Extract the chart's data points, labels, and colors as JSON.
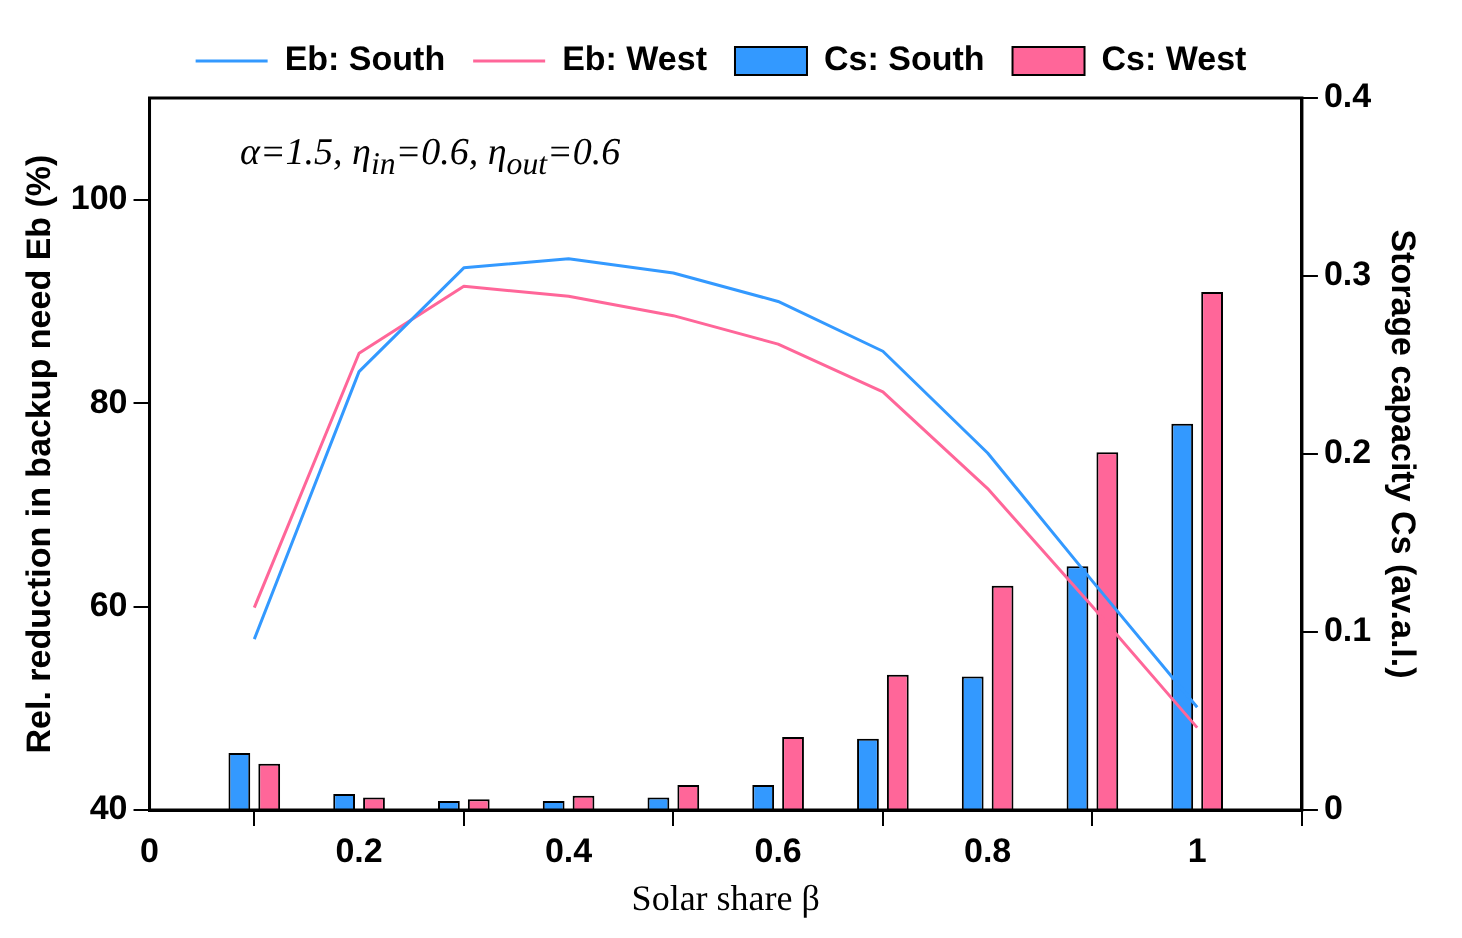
{
  "chart_data": {
    "type": "line",
    "x": [
      0.1,
      0.2,
      0.3,
      0.4,
      0.5,
      0.6,
      0.7,
      0.8,
      0.9,
      1.0
    ],
    "series": [
      {
        "name": "Eb: South",
        "color": "#3399ff",
        "values": [
          56.8,
          83.1,
          93.3,
          94.2,
          92.8,
          90.0,
          85.1,
          75.1,
          62.5,
          50.1
        ]
      },
      {
        "name": "Eb: West",
        "color": "#ff6699",
        "values": [
          59.9,
          84.9,
          91.5,
          90.5,
          88.6,
          85.8,
          81.1,
          71.6,
          60.0,
          48.1
        ]
      },
      {
        "name": "Cs: South",
        "type": "bar",
        "axis": "y2",
        "color": "#3399ff",
        "values": [
          0.032,
          0.009,
          0.005,
          0.005,
          0.007,
          0.014,
          0.04,
          0.075,
          0.137,
          0.217
        ]
      },
      {
        "name": "Cs: West",
        "type": "bar",
        "axis": "y2",
        "color": "#ff6699",
        "values": [
          0.026,
          0.007,
          0.006,
          0.008,
          0.014,
          0.041,
          0.076,
          0.126,
          0.201,
          0.291
        ]
      }
    ],
    "xlabel": "Solar share β",
    "ylabel": "Rel. reduction in backup need Eb (%)",
    "y2label": "Storage capacity Cs (av.a.l.)",
    "annotations": [
      "α=1.5, η$_{in}$=0.6, η$_{out}$=0.6"
    ],
    "xlim": [
      0,
      1.1
    ],
    "xticks": [
      0,
      0.2,
      0.4,
      0.6,
      0.8,
      1
    ],
    "ylim": [
      40,
      110
    ],
    "yticks": [
      40,
      60,
      80,
      100
    ],
    "y2lim": [
      0,
      0.4
    ],
    "y2ticks": [
      0,
      0.1,
      0.2,
      0.3,
      0.4
    ],
    "legend": "top",
    "marker": "none",
    "line_style": "solid",
    "grid": false
  }
}
